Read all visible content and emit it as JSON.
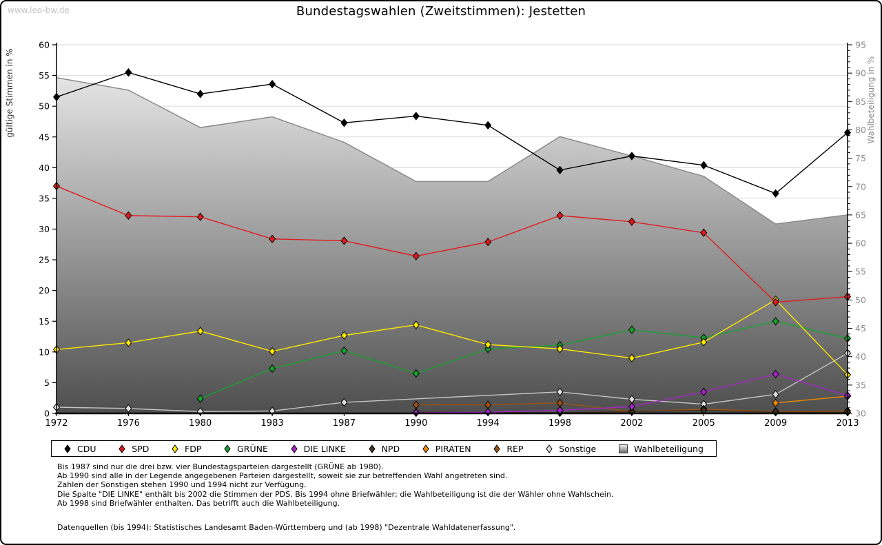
{
  "watermark": "www.leo-bw.de",
  "title": "Bundestagswahlen (Zweitstimmen): Jestetten",
  "chart_data": {
    "type": "line",
    "title": "Bundestagswahlen (Zweitstimmen): Jestetten",
    "x_categories": [
      "1972",
      "1976",
      "1980",
      "1983",
      "1987",
      "1990",
      "1994",
      "1998",
      "2002",
      "2005",
      "2009",
      "2013"
    ],
    "left_axis": {
      "label": "gültige Stimmen in %",
      "min": 0,
      "max": 60,
      "tick_step": 5
    },
    "right_axis": {
      "label": "Wahlbeteiligung in %",
      "min": 30,
      "max": 95,
      "tick_step": 5,
      "minor_step": 1
    },
    "grid": true,
    "legend_position": "bottom",
    "area_series": {
      "name": "Wahlbeteiligung",
      "axis": "right",
      "border_color": "#8a8a8a",
      "fill_top": "#f3f3f3",
      "fill_bottom": "#4e4e4e",
      "values": [
        89.2,
        87.0,
        80.4,
        82.3,
        77.8,
        70.9,
        70.9,
        78.8,
        75.4,
        71.8,
        63.4,
        65.0
      ]
    },
    "series": [
      {
        "name": "CDU",
        "color": "#000000",
        "marker_fill": "#000000",
        "axis": "left",
        "values": [
          51.5,
          55.5,
          52.0,
          53.6,
          47.3,
          48.4,
          46.9,
          39.6,
          41.9,
          40.4,
          35.8,
          45.7
        ]
      },
      {
        "name": "SPD",
        "color": "#e11b1e",
        "marker_fill": "#e11b1e",
        "axis": "left",
        "values": [
          37.0,
          32.2,
          32.0,
          28.4,
          28.1,
          25.6,
          27.9,
          32.2,
          31.2,
          29.4,
          18.1,
          19.0
        ]
      },
      {
        "name": "FDP",
        "color": "#ffe800",
        "marker_fill": "#ffe800",
        "axis": "left",
        "values": [
          10.4,
          11.5,
          13.4,
          10.1,
          12.7,
          14.4,
          11.2,
          10.5,
          9.0,
          11.6,
          18.5,
          6.3
        ]
      },
      {
        "name": "GRÜNE",
        "color": "#17a232",
        "marker_fill": "#17a232",
        "axis": "left",
        "values": [
          null,
          null,
          2.4,
          7.3,
          10.2,
          6.5,
          10.5,
          11.1,
          13.6,
          12.3,
          15.0,
          12.2
        ]
      },
      {
        "name": "DIE LINKE",
        "color": "#a428c8",
        "marker_fill": "#a428c8",
        "axis": "left",
        "values": [
          null,
          null,
          null,
          null,
          null,
          0.1,
          0.2,
          0.5,
          1.1,
          3.5,
          6.4,
          2.9
        ]
      },
      {
        "name": "NPD",
        "color": "#46321c",
        "marker_fill": "#46321c",
        "axis": "left",
        "values": [
          null,
          null,
          null,
          null,
          null,
          0.2,
          null,
          0.1,
          0.3,
          0.5,
          0.2,
          0.2
        ]
      },
      {
        "name": "PIRATEN",
        "color": "#f08a00",
        "marker_fill": "#f08a00",
        "axis": "left",
        "values": [
          null,
          null,
          null,
          null,
          null,
          null,
          null,
          null,
          null,
          null,
          1.7,
          2.8
        ]
      },
      {
        "name": "REP",
        "color": "#9e5312",
        "marker_fill": "#9e5312",
        "axis": "left",
        "values": [
          null,
          null,
          null,
          null,
          null,
          1.4,
          1.4,
          1.7,
          0.3,
          0.7,
          0.3,
          0.4
        ]
      },
      {
        "name": "Sonstige",
        "color": "#c4c4c4",
        "marker_fill": "#dedede",
        "axis": "left",
        "values": [
          1.0,
          0.8,
          0.3,
          0.4,
          1.8,
          null,
          null,
          3.5,
          2.3,
          1.5,
          3.1,
          9.8
        ]
      }
    ]
  },
  "legend": {
    "items": [
      {
        "label": "CDU",
        "color": "#000000",
        "icon": "diamond"
      },
      {
        "label": "SPD",
        "color": "#e11b1e",
        "icon": "diamond"
      },
      {
        "label": "FDP",
        "color": "#ffe800",
        "icon": "diamond"
      },
      {
        "label": "GRÜNE",
        "color": "#17a232",
        "icon": "diamond"
      },
      {
        "label": "DIE LINKE",
        "color": "#a428c8",
        "icon": "diamond"
      },
      {
        "label": "NPD",
        "color": "#46321c",
        "icon": "diamond"
      },
      {
        "label": "PIRATEN",
        "color": "#f08a00",
        "icon": "diamond"
      },
      {
        "label": "REP",
        "color": "#9e5312",
        "icon": "diamond"
      },
      {
        "label": "Sonstige",
        "color": "#dedede",
        "icon": "diamond"
      },
      {
        "label": "Wahlbeteiligung",
        "color": "#bdbdbd",
        "icon": "square"
      }
    ]
  },
  "notes": [
    "Bis 1987 sind nur die drei bzw. vier Bundestagsparteien dargestellt (GRÜNE ab 1980).",
    "Ab 1990 sind alle in der Legende angegebenen Parteien dargestellt, soweit sie zur betreffenden Wahl angetreten sind.",
    "Zahlen der Sonstigen stehen 1990 und 1994 nicht zur Verfügung.",
    "Die Spalte \"DIE LINKE\" enthält bis 2002 die Stimmen der PDS. Bis 1994 ohne Briefwähler; die Wahlbeteiligung ist die der Wähler ohne Wahlschein.",
    "Ab 1998 sind Briefwähler enthalten. Das betrifft auch die Wahlbeteiligung."
  ],
  "source": "Datenquellen (bis 1994): Statistisches Landesamt Baden-Württemberg und (ab 1998) \"Dezentrale Wahldatenerfassung\"."
}
